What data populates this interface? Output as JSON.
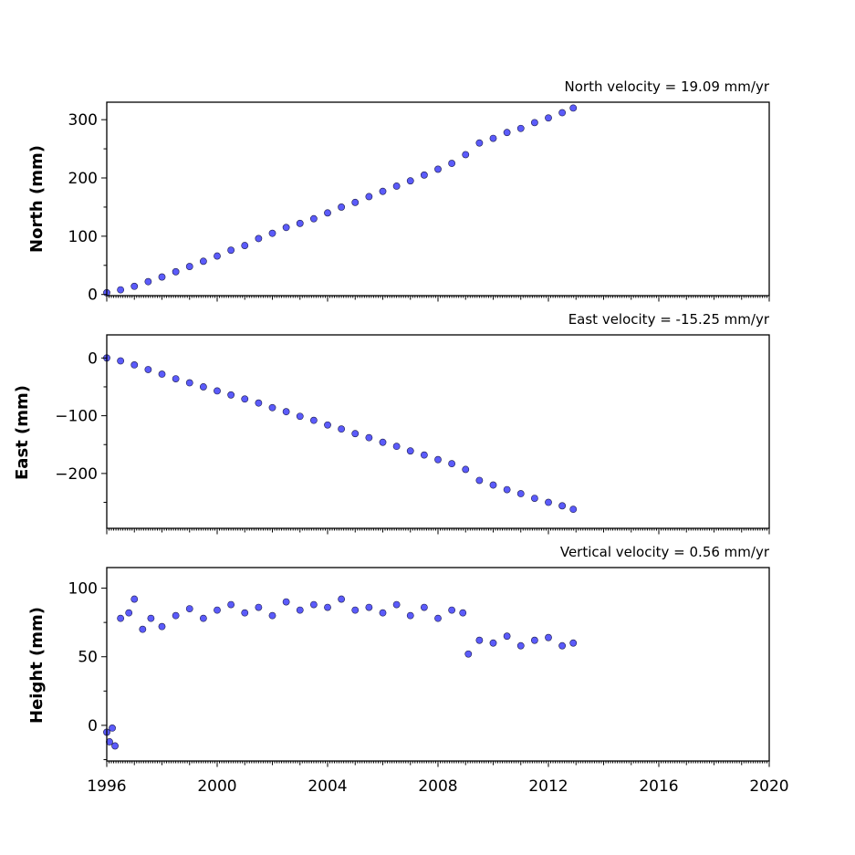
{
  "chart_data": [
    {
      "type": "scatter",
      "title": "North velocity = 19.09 mm/yr",
      "ylabel": "North (mm)",
      "xlim": [
        1996,
        2020
      ],
      "ylim": [
        -2,
        330
      ],
      "yticks": [
        0,
        100,
        200,
        300
      ],
      "marker_color": "#5b5bfa",
      "x": [
        1996.0,
        1996.5,
        1997.0,
        1997.5,
        1998.0,
        1998.5,
        1999.0,
        1999.5,
        2000.0,
        2000.5,
        2001.0,
        2001.5,
        2002.0,
        2002.5,
        2003.0,
        2003.5,
        2004.0,
        2004.5,
        2005.0,
        2005.5,
        2006.0,
        2006.5,
        2007.0,
        2007.5,
        2008.0,
        2008.5,
        2009.0,
        2009.5,
        2010.0,
        2010.5,
        2011.0,
        2011.5,
        2012.0,
        2012.5,
        2012.9
      ],
      "y": [
        3,
        8,
        14,
        22,
        30,
        39,
        48,
        57,
        66,
        76,
        84,
        96,
        105,
        115,
        122,
        130,
        140,
        150,
        158,
        168,
        177,
        186,
        195,
        205,
        215,
        225,
        240,
        260,
        268,
        278,
        285,
        295,
        303,
        312,
        320
      ]
    },
    {
      "type": "scatter",
      "title": "East velocity = -15.25 mm/yr",
      "ylabel": "East (mm)",
      "xlim": [
        1996,
        2020
      ],
      "ylim": [
        -295,
        40
      ],
      "yticks": [
        0,
        -100,
        -200
      ],
      "marker_color": "#5b5bfa",
      "x": [
        1996.0,
        1996.5,
        1997.0,
        1997.5,
        1998.0,
        1998.5,
        1999.0,
        1999.5,
        2000.0,
        2000.5,
        2001.0,
        2001.5,
        2002.0,
        2002.5,
        2003.0,
        2003.5,
        2004.0,
        2004.5,
        2005.0,
        2005.5,
        2006.0,
        2006.5,
        2007.0,
        2007.5,
        2008.0,
        2008.5,
        2009.0,
        2009.5,
        2010.0,
        2010.5,
        2011.0,
        2011.5,
        2012.0,
        2012.5,
        2012.9
      ],
      "y": [
        0,
        -5,
        -12,
        -20,
        -28,
        -36,
        -43,
        -50,
        -57,
        -64,
        -71,
        -78,
        -86,
        -93,
        -101,
        -108,
        -116,
        -123,
        -131,
        -138,
        -146,
        -153,
        -161,
        -168,
        -176,
        -183,
        -193,
        -212,
        -220,
        -228,
        -235,
        -243,
        -250,
        -256,
        -262
      ]
    },
    {
      "type": "scatter",
      "title": "Vertical velocity = 0.56 mm/yr",
      "ylabel": "Height (mm)",
      "xlabel": "",
      "xlim": [
        1996,
        2020
      ],
      "ylim": [
        -26,
        115
      ],
      "yticks": [
        0,
        50,
        100
      ],
      "xticks": [
        1996,
        2000,
        2004,
        2008,
        2012,
        2016,
        2020
      ],
      "marker_color": "#5b5bfa",
      "x": [
        1996.0,
        1996.1,
        1996.2,
        1996.3,
        1996.5,
        1996.8,
        1997.0,
        1997.3,
        1997.6,
        1998.0,
        1998.5,
        1999.0,
        1999.5,
        2000.0,
        2000.5,
        2001.0,
        2001.5,
        2002.0,
        2002.5,
        2003.0,
        2003.5,
        2004.0,
        2004.5,
        2005.0,
        2005.5,
        2006.0,
        2006.5,
        2007.0,
        2007.5,
        2008.0,
        2008.5,
        2008.9,
        2009.1,
        2009.5,
        2010.0,
        2010.5,
        2011.0,
        2011.5,
        2012.0,
        2012.5,
        2012.9
      ],
      "y": [
        -5,
        -12,
        -2,
        -15,
        78,
        82,
        92,
        70,
        78,
        72,
        80,
        85,
        78,
        84,
        88,
        82,
        86,
        80,
        90,
        84,
        88,
        86,
        92,
        84,
        86,
        82,
        88,
        80,
        86,
        78,
        84,
        82,
        52,
        62,
        60,
        65,
        58,
        62,
        64,
        58,
        60
      ]
    }
  ]
}
